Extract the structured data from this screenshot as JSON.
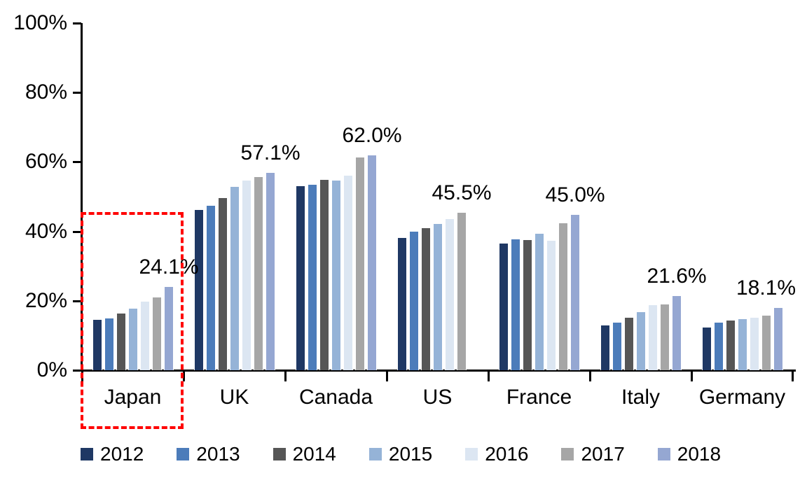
{
  "chart_data": {
    "type": "bar",
    "title": "",
    "xlabel": "",
    "ylabel": "",
    "categories": [
      "Japan",
      "UK",
      "Canada",
      "US",
      "France",
      "Italy",
      "Germany"
    ],
    "series": [
      {
        "name": "2012",
        "color": "#1F3864",
        "values": [
          14.7,
          46.3,
          53.2,
          38.3,
          36.7,
          13.2,
          12.6
        ]
      },
      {
        "name": "2013",
        "color": "#4C7CBA",
        "values": [
          15.1,
          47.6,
          53.6,
          40.1,
          37.9,
          14.0,
          14.0
        ]
      },
      {
        "name": "2014",
        "color": "#565656",
        "values": [
          16.5,
          49.8,
          55.0,
          41.2,
          37.7,
          15.3,
          14.5
        ]
      },
      {
        "name": "2015",
        "color": "#95B3D7",
        "values": [
          17.9,
          53.0,
          54.8,
          42.3,
          39.5,
          16.9,
          14.9
        ]
      },
      {
        "name": "2016",
        "color": "#DCE6F2",
        "values": [
          20.0,
          54.8,
          56.2,
          43.7,
          37.5,
          18.9,
          15.4
        ]
      },
      {
        "name": "2017",
        "color": "#A6A6A6",
        "values": [
          21.1,
          55.8,
          61.4,
          45.5,
          42.5,
          19.1,
          16.0
        ]
      },
      {
        "name": "2018",
        "color": "#95A7D2",
        "values": [
          24.1,
          57.1,
          62.0,
          null,
          45.0,
          21.6,
          18.1
        ]
      }
    ],
    "data_labels": [
      {
        "category": "Japan",
        "text": "24.1%"
      },
      {
        "category": "UK",
        "text": "57.1%"
      },
      {
        "category": "Canada",
        "text": "62.0%"
      },
      {
        "category": "US",
        "text": "45.5%"
      },
      {
        "category": "France",
        "text": "45.0%"
      },
      {
        "category": "Italy",
        "text": "21.6%"
      },
      {
        "category": "Germany",
        "text": "18.1%"
      }
    ],
    "ylim": [
      0,
      100
    ],
    "yticks": [
      {
        "value": 100,
        "label": "100%"
      },
      {
        "value": 80,
        "label": "80%"
      },
      {
        "value": 60,
        "label": "60%"
      },
      {
        "value": 40,
        "label": "40%"
      },
      {
        "value": 20,
        "label": "20%"
      },
      {
        "value": 0,
        "label": "0%"
      }
    ],
    "grid": false,
    "legend_position": "bottom",
    "axis_color": "#000000",
    "text_color": "#000000",
    "highlight": {
      "type": "dashed-box",
      "category": "Japan",
      "color": "#FF0000"
    }
  }
}
